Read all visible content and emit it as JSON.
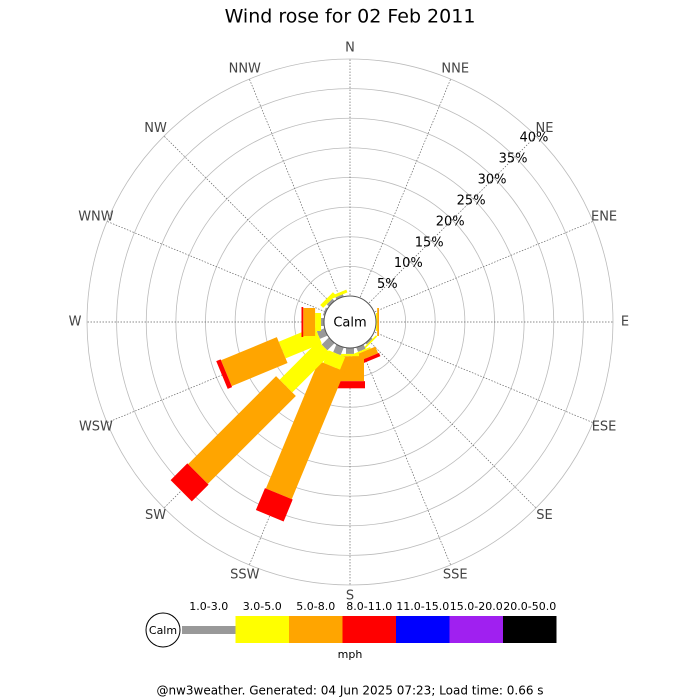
{
  "chart_data": {
    "type": "windrose",
    "title": "Wind rose for 02 Feb 2011",
    "calm_label": "Calm",
    "directions": [
      "N",
      "NNE",
      "NE",
      "ENE",
      "E",
      "ESE",
      "SE",
      "SSE",
      "S",
      "SSW",
      "SW",
      "WSW",
      "W",
      "WNW",
      "NW",
      "NNW"
    ],
    "rlim": [
      0,
      40
    ],
    "rticks": [
      {
        "value": 5,
        "label": "5%"
      },
      {
        "value": 10,
        "label": "10%"
      },
      {
        "value": 15,
        "label": "15%"
      },
      {
        "value": 20,
        "label": "20%"
      },
      {
        "value": 25,
        "label": "25%"
      },
      {
        "value": 30,
        "label": "30%"
      },
      {
        "value": 35,
        "label": "35%"
      },
      {
        "value": 40,
        "label": "40%"
      }
    ],
    "series": [
      {
        "name": "1.0-3.0",
        "color": "#999999",
        "values": [
          0,
          0,
          0,
          0,
          0,
          0,
          0.3,
          0.8,
          1,
          1.4,
          1.7,
          1.4,
          0.5,
          0.3,
          0.5,
          0.4
        ]
      },
      {
        "name": "3.0-5.0",
        "color": "#ffff00",
        "values": [
          0,
          0,
          0,
          0,
          0.2,
          0,
          0.3,
          0.3,
          0.4,
          2.3,
          9.2,
          6.6,
          1,
          0,
          0.7,
          0.5
        ]
      },
      {
        "name": "5.0-8.0",
        "color": "#ffa500",
        "values": [
          0,
          0,
          0,
          0,
          0.3,
          0,
          0,
          1.2,
          4.2,
          23.3,
          21,
          10.2,
          2,
          0,
          0,
          0
        ]
      },
      {
        "name": "8.0-11.0",
        "color": "#ff0000",
        "values": [
          0,
          0,
          0,
          0,
          0,
          0,
          0,
          0.6,
          1.2,
          4,
          4,
          0.8,
          0.3,
          0,
          0,
          0
        ]
      },
      {
        "name": "11.0-15.0",
        "color": "#0000ff",
        "values": [
          0,
          0,
          0,
          0,
          0,
          0,
          0,
          0,
          0,
          0,
          0,
          0,
          0,
          0,
          0,
          0
        ]
      },
      {
        "name": "15.0-20.0",
        "color": "#a020f0",
        "values": [
          0,
          0,
          0,
          0,
          0,
          0,
          0,
          0,
          0,
          0,
          0,
          0,
          0,
          0,
          0,
          0
        ]
      },
      {
        "name": "20.0-50.0",
        "color": "#000000",
        "values": [
          0,
          0,
          0,
          0,
          0,
          0,
          0,
          0,
          0,
          0,
          0,
          0,
          0,
          0,
          0,
          0
        ]
      }
    ],
    "unit_label": "mph",
    "footer": "@nw3weather. Generated: 04 Jun 2025 07:23; Load time: 0.66 s"
  }
}
